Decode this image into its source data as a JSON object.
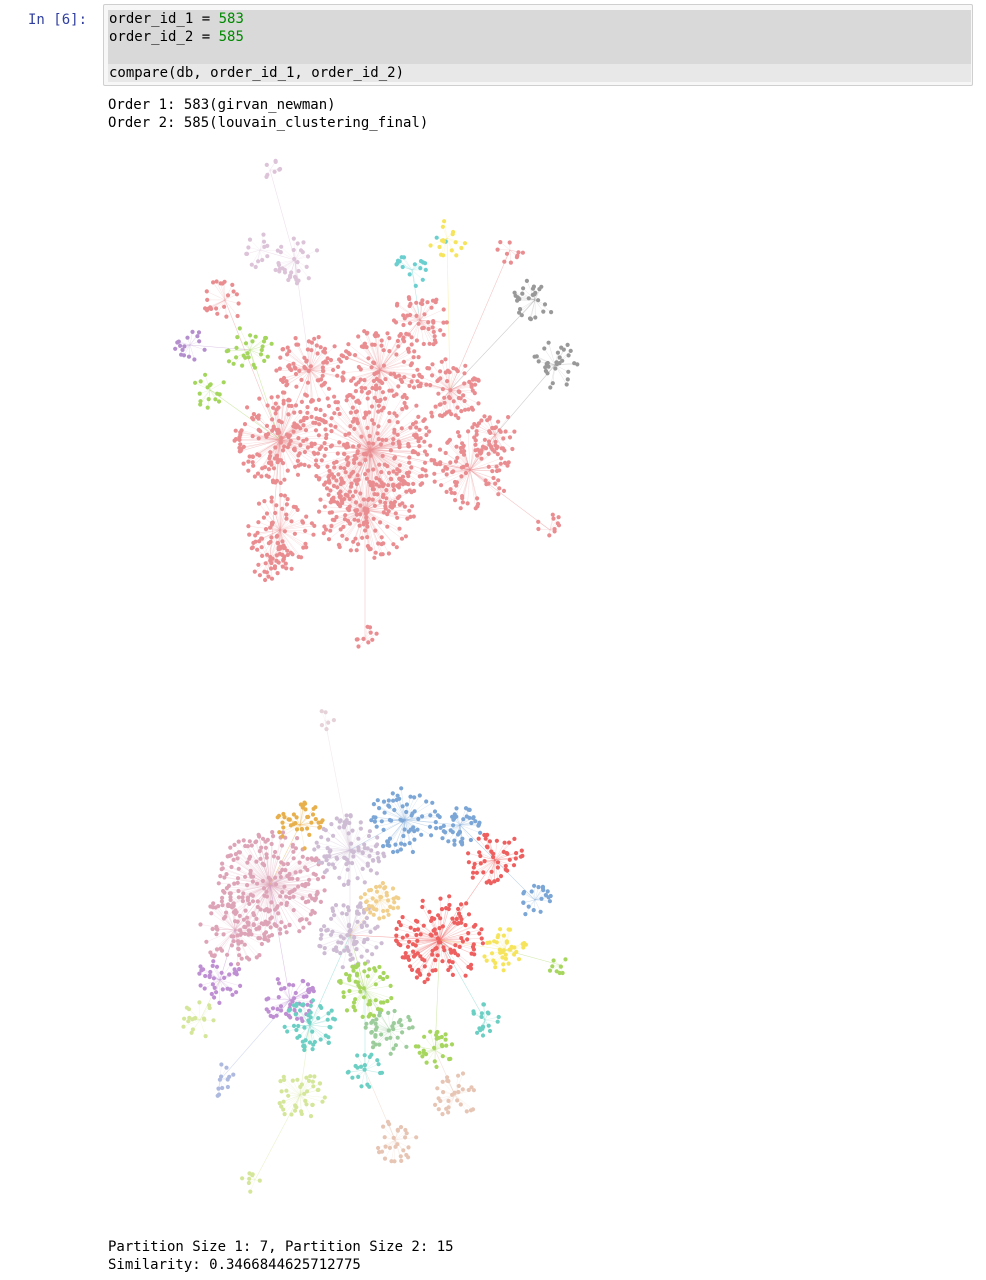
{
  "cell": {
    "prompt": "In [6]:",
    "code": {
      "line1_var": "order_id_1",
      "line1_op": " = ",
      "line1_val": "583",
      "line2_var": "order_id_2",
      "line2_op": " = ",
      "line2_val": "585",
      "line3": "compare(db, order_id_1, order_id_2)"
    }
  },
  "output": {
    "order1": "Order 1: 583(girvan_newman)",
    "order2": "Order 2: 585(louvain_clustering_final)",
    "partition_sizes": "Partition Size 1: 7, Partition Size 2: 15",
    "similarity": "Similarity: 0.3466844625712775"
  },
  "graph1": {
    "partition_count": 7,
    "colors": [
      "#e98d91",
      "#dcc3d8",
      "#a4d65e",
      "#b48ecd",
      "#6ccfcf",
      "#f6e45c",
      "#999999"
    ]
  },
  "graph2": {
    "partition_count": 15,
    "colors": [
      "#dda3b7",
      "#e8b04c",
      "#cdbcd3",
      "#7ba6d6",
      "#ee5f5f",
      "#f6e45c",
      "#a7d65f",
      "#bf8fd3",
      "#6ccfc4",
      "#d4e69a",
      "#aeb9e0",
      "#e7c5b4",
      "#e5d2d8",
      "#9ccc9c",
      "#f1cf8c"
    ]
  }
}
